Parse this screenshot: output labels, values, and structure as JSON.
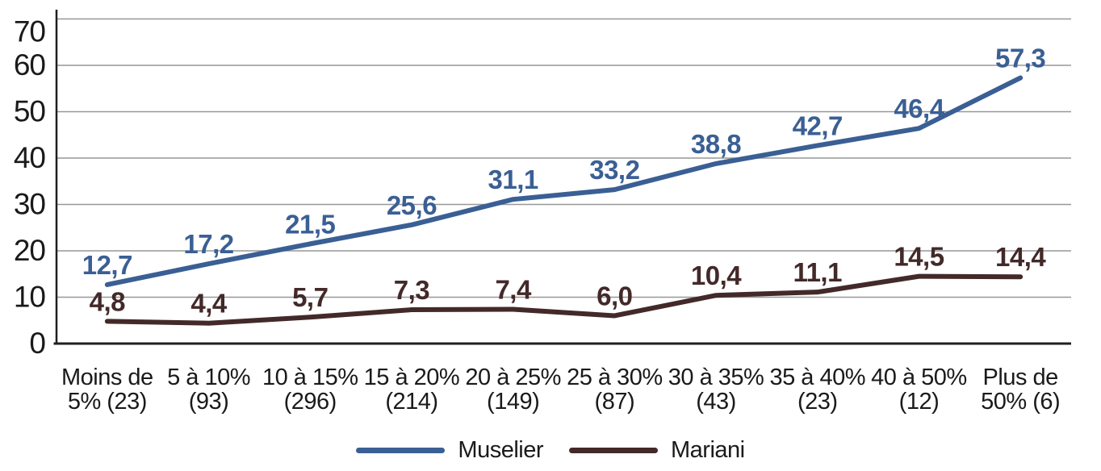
{
  "chart_data": {
    "type": "line",
    "title": "",
    "xlabel": "",
    "ylabel": "",
    "categories": [
      [
        "Moins de",
        "5% (23)"
      ],
      [
        "5 à 10%",
        "(93)"
      ],
      [
        "10 à 15%",
        "(296)"
      ],
      [
        "15 à 20%",
        "(214)"
      ],
      [
        "20 à 25%",
        "(149)"
      ],
      [
        "25 à 30%",
        "(87)"
      ],
      [
        "30 à 35%",
        "(43)"
      ],
      [
        "35 à 40%",
        "(23)"
      ],
      [
        "40 à 50%",
        "(12)"
      ],
      [
        "Plus de",
        "50% (6)"
      ]
    ],
    "series": [
      {
        "name": "Muselier",
        "color": "#3A5F94",
        "values": [
          12.7,
          17.2,
          21.5,
          25.6,
          31.1,
          33.2,
          38.8,
          42.7,
          46.4,
          57.3
        ],
        "labels": [
          "12,7",
          "17,2",
          "21,5",
          "25,6",
          "31,1",
          "33,2",
          "38,8",
          "42,7",
          "46,4",
          "57,3"
        ]
      },
      {
        "name": "Mariani",
        "color": "#432929",
        "values": [
          4.8,
          4.4,
          5.7,
          7.3,
          7.4,
          6.0,
          10.4,
          11.1,
          14.5,
          14.4
        ],
        "labels": [
          "4,8",
          "4,4",
          "5,7",
          "7,3",
          "7,4",
          "6,0",
          "10,4",
          "11,1",
          "14,5",
          "14,4"
        ]
      }
    ],
    "ylim": [
      0,
      70
    ],
    "yticks": [
      0,
      10,
      20,
      30,
      40,
      50,
      60,
      70
    ],
    "grid": true,
    "legend_position": "bottom"
  },
  "colors": {
    "background": "#ffffff",
    "grid": "#979797",
    "axis": "#1f1f1f",
    "tick_text": "#1a1a1a",
    "muselier": "#3A5F94",
    "mariani": "#432929"
  }
}
